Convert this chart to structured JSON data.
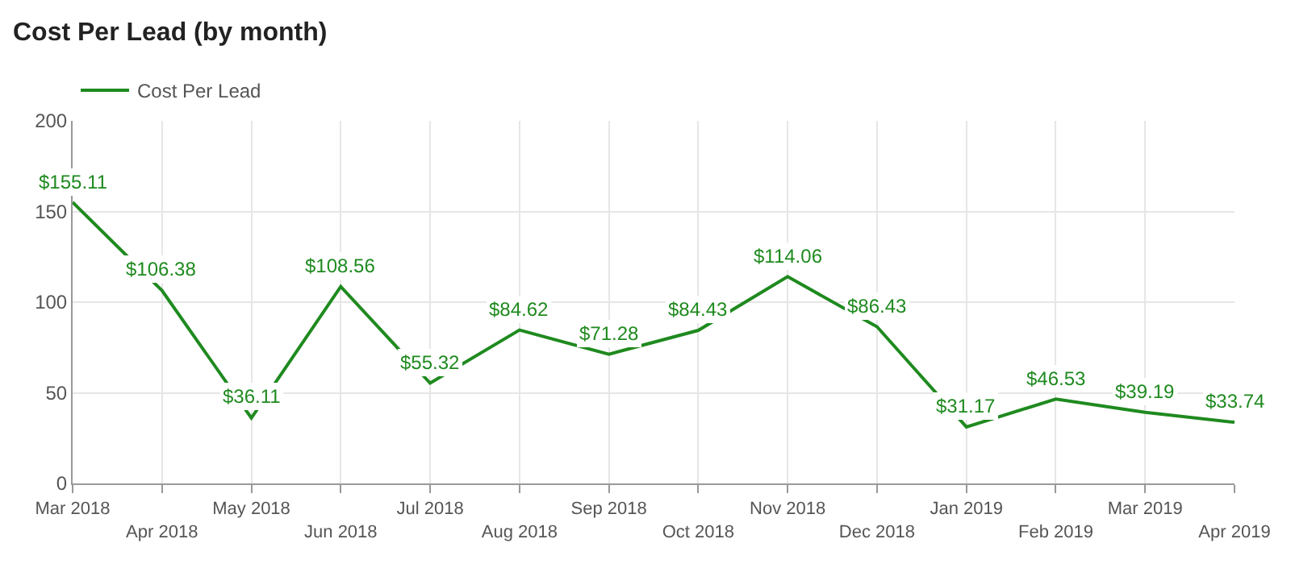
{
  "chart_data": {
    "type": "line",
    "title": "Cost Per Lead (by month)",
    "categories": [
      "Mar 2018",
      "Apr 2018",
      "May 2018",
      "Jun 2018",
      "Jul 2018",
      "Aug 2018",
      "Sep 2018",
      "Oct 2018",
      "Nov 2018",
      "Dec 2018",
      "Jan 2019",
      "Feb 2019",
      "Mar 2019",
      "Apr 2019"
    ],
    "series": [
      {
        "name": "Cost Per Lead",
        "color": "#1f8a1f",
        "values": [
          155.11,
          106.38,
          36.11,
          108.56,
          55.32,
          84.62,
          71.28,
          84.43,
          114.06,
          86.43,
          31.17,
          46.53,
          39.19,
          33.74
        ],
        "value_labels": [
          "$155.11",
          "$106.38",
          "$36.11",
          "$108.56",
          "$55.32",
          "$84.62",
          "$71.28",
          "$84.43",
          "$114.06",
          "$86.43",
          "$31.17",
          "$46.53",
          "$39.19",
          "$33.74"
        ]
      }
    ],
    "ylim": [
      0,
      200
    ],
    "yticks": [
      0,
      50,
      100,
      150,
      200
    ],
    "grid": true,
    "legend": "top left",
    "marker": "none",
    "line_style": "solid"
  }
}
